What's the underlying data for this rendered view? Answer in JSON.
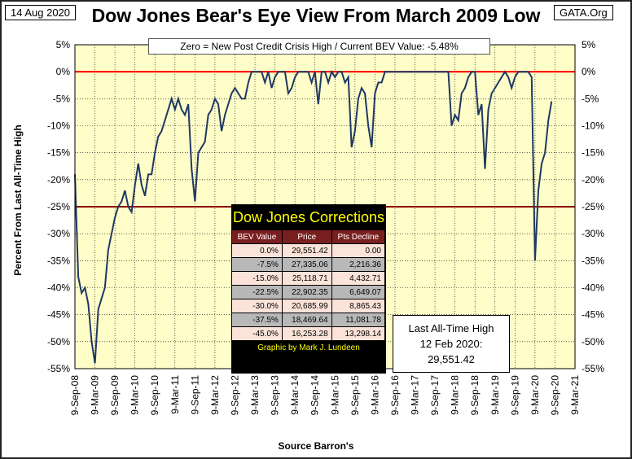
{
  "header": {
    "date": "14 Aug 2020",
    "title": "Dow Jones Bear's Eye View From March 2009 Low",
    "source_site": "GATA.Org",
    "subtitle": "Zero = New Post Credit Crisis High / Current BEV Value:  -5.48%"
  },
  "colors": {
    "plot_background": "#fffdc8",
    "line": "#1f3864",
    "zero_line": "#ff0000",
    "minus25_line": "#8b0000",
    "grid": "#000000"
  },
  "chart_data": {
    "type": "line",
    "xlabel": "Source Barron's",
    "ylabel": "Percent From Last All-Time High",
    "ylim": [
      -55,
      5
    ],
    "yticks": [
      5,
      0,
      -5,
      -10,
      -15,
      -20,
      -25,
      -30,
      -35,
      -40,
      -45,
      -50,
      -55
    ],
    "ytick_labels": [
      "5%",
      "0%",
      "-5%",
      "-10%",
      "-15%",
      "-20%",
      "-25%",
      "-30%",
      "-35%",
      "-40%",
      "-45%",
      "-50%",
      "-55%"
    ],
    "x_range": [
      "2008-09",
      "2021-03"
    ],
    "xticks": [
      "9-Sep-08",
      "9-Mar-09",
      "9-Sep-09",
      "9-Mar-10",
      "9-Sep-10",
      "9-Mar-11",
      "9-Sep-11",
      "9-Mar-12",
      "9-Sep-12",
      "9-Mar-13",
      "9-Sep-13",
      "9-Mar-14",
      "9-Sep-14",
      "9-Mar-15",
      "9-Sep-15",
      "9-Mar-16",
      "9-Sep-16",
      "9-Mar-17",
      "9-Sep-17",
      "9-Mar-18",
      "9-Sep-18",
      "9-Mar-19",
      "9-Sep-19",
      "9-Mar-20",
      "9-Sep-20",
      "9-Mar-21"
    ],
    "reference_lines": [
      0,
      -25
    ],
    "grid": true,
    "series": [
      {
        "x": [
          "2008-09",
          "2008-10",
          "2008-11",
          "2008-12",
          "2009-01",
          "2009-02",
          "2009-03",
          "2009-04",
          "2009-05",
          "2009-06",
          "2009-07",
          "2009-08",
          "2009-09",
          "2009-10",
          "2009-11",
          "2009-12",
          "2010-01",
          "2010-02",
          "2010-03",
          "2010-04",
          "2010-05",
          "2010-06",
          "2010-07",
          "2010-08",
          "2010-09",
          "2010-10",
          "2010-11",
          "2010-12",
          "2011-01",
          "2011-02",
          "2011-03",
          "2011-04",
          "2011-05",
          "2011-06",
          "2011-07",
          "2011-08",
          "2011-09",
          "2011-10",
          "2011-11",
          "2011-12",
          "2012-01",
          "2012-02",
          "2012-03",
          "2012-04",
          "2012-05",
          "2012-06",
          "2012-07",
          "2012-08",
          "2012-09",
          "2012-10",
          "2012-11",
          "2012-12",
          "2013-01",
          "2013-02",
          "2013-03",
          "2013-04",
          "2013-05",
          "2013-06",
          "2013-07",
          "2013-08",
          "2013-09",
          "2013-10",
          "2013-11",
          "2013-12",
          "2014-01",
          "2014-02",
          "2014-03",
          "2014-04",
          "2014-05",
          "2014-06",
          "2014-07",
          "2014-08",
          "2014-09",
          "2014-10",
          "2014-11",
          "2014-12",
          "2015-01",
          "2015-02",
          "2015-03",
          "2015-04",
          "2015-05",
          "2015-06",
          "2015-07",
          "2015-08",
          "2015-09",
          "2015-10",
          "2015-11",
          "2015-12",
          "2016-01",
          "2016-02",
          "2016-03",
          "2016-04",
          "2016-05",
          "2016-06",
          "2016-07",
          "2016-08",
          "2016-09",
          "2016-10",
          "2016-11",
          "2016-12",
          "2017-01",
          "2017-02",
          "2017-03",
          "2017-04",
          "2017-05",
          "2017-06",
          "2017-07",
          "2017-08",
          "2017-09",
          "2017-10",
          "2017-11",
          "2017-12",
          "2018-01",
          "2018-02",
          "2018-03",
          "2018-04",
          "2018-05",
          "2018-06",
          "2018-07",
          "2018-08",
          "2018-09",
          "2018-10",
          "2018-11",
          "2018-12",
          "2019-01",
          "2019-02",
          "2019-03",
          "2019-04",
          "2019-05",
          "2019-06",
          "2019-07",
          "2019-08",
          "2019-09",
          "2019-10",
          "2019-11",
          "2019-12",
          "2020-01",
          "2020-02",
          "2020-03",
          "2020-04",
          "2020-05",
          "2020-06",
          "2020-07",
          "2020-08"
        ],
        "y": [
          -19,
          -38,
          -41,
          -40,
          -43,
          -50,
          -54,
          -44,
          -42,
          -40,
          -33,
          -30,
          -27,
          -25,
          -24,
          -22,
          -25,
          -26,
          -21,
          -17,
          -21,
          -23,
          -19,
          -19,
          -15,
          -12,
          -11,
          -9,
          -7,
          -5,
          -7,
          -5,
          -7,
          -8,
          -6,
          -18,
          -24,
          -15,
          -14,
          -13,
          -8,
          -7,
          -5,
          -6,
          -11,
          -8,
          -6,
          -4,
          -3,
          -4,
          -5,
          -5,
          -2,
          0,
          0,
          0,
          0,
          -2,
          0,
          -3,
          -1,
          0,
          0,
          0,
          -4,
          -3,
          -1,
          0,
          0,
          0,
          0,
          -2,
          0,
          -6,
          0,
          0,
          -2,
          0,
          -1,
          0,
          0,
          -2,
          -1,
          -14,
          -11,
          -5,
          -3,
          -4,
          -10,
          -14,
          -4,
          -2,
          -2,
          0,
          0,
          0,
          0,
          0,
          0,
          0,
          0,
          0,
          0,
          0,
          0,
          0,
          0,
          0,
          0,
          0,
          0,
          0,
          0,
          -10,
          -8,
          -9,
          -4,
          -3,
          -1,
          0,
          0,
          -8,
          -6,
          -18,
          -7,
          -4,
          -3,
          -2,
          -1,
          0,
          -1,
          -3,
          -1,
          0,
          0,
          0,
          0,
          -1,
          -35,
          -22,
          -17,
          -15,
          -9,
          -5.48
        ]
      }
    ]
  },
  "corrections_table": {
    "title": "Dow Jones Corrections",
    "headers": [
      "BEV Value",
      "Price",
      "Pts Decline"
    ],
    "rows": [
      [
        "0.0%",
        "29,551.42",
        "0.00"
      ],
      [
        "-7.5%",
        "27,335.06",
        "2,216.36"
      ],
      [
        "-15.0%",
        "25,118.71",
        "4,432.71"
      ],
      [
        "-22.5%",
        "22,902.35",
        "6,649.07"
      ],
      [
        "-30.0%",
        "20,685.99",
        "8,865.43"
      ],
      [
        "-37.5%",
        "18,469.64",
        "11,081.78"
      ],
      [
        "-45.0%",
        "16,253.28",
        "13,298.14"
      ]
    ],
    "footer": "Graphic by Mark J. Lundeen"
  },
  "ath_box": {
    "line1": "Last All-Time High",
    "line2": "12 Feb 2020:",
    "line3": "29,551.42"
  }
}
